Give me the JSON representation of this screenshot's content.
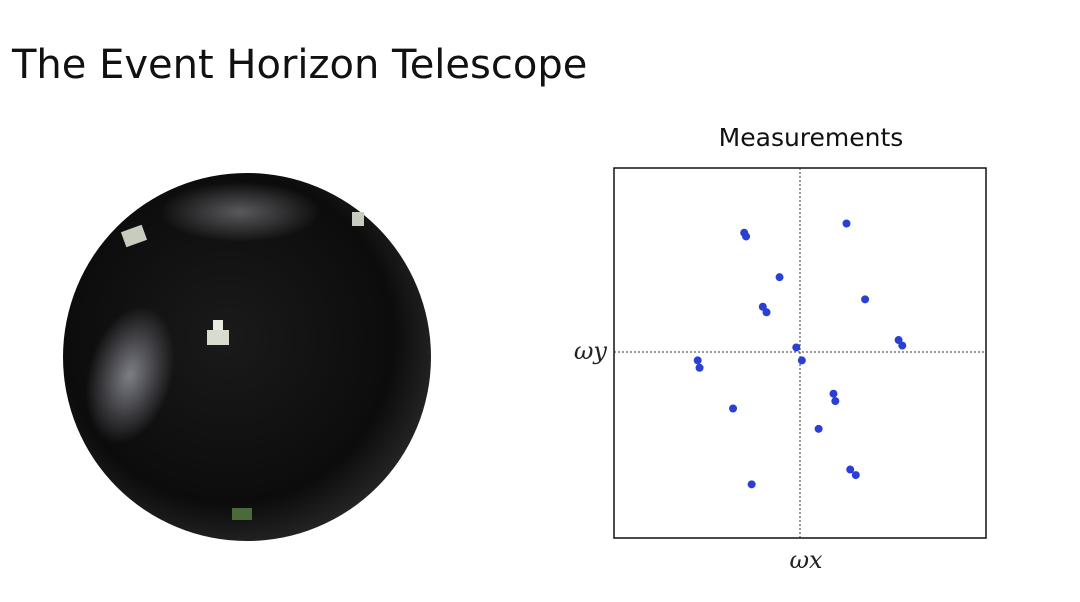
{
  "title": "The Event Horizon Telescope",
  "chart_data": {
    "type": "scatter",
    "title": "Measurements",
    "x_label": "ωx",
    "y_label": "ωy",
    "color": "#2b3fd4",
    "xlim": [
      -1,
      1
    ],
    "ylim": [
      -1,
      1
    ],
    "x": [
      -0.3,
      -0.29,
      0.25,
      -0.11,
      0.35,
      -0.2,
      -0.18,
      0.53,
      0.55,
      -0.02,
      0.01,
      -0.55,
      -0.54,
      0.18,
      0.19,
      -0.36,
      0.1,
      0.27,
      0.3,
      -0.26
    ],
    "values": [
      0.65,
      0.63,
      0.7,
      0.41,
      0.29,
      0.25,
      0.22,
      0.07,
      0.04,
      0.03,
      -0.04,
      -0.04,
      -0.08,
      -0.22,
      -0.26,
      -0.3,
      -0.41,
      -0.63,
      -0.66,
      -0.71
    ]
  }
}
